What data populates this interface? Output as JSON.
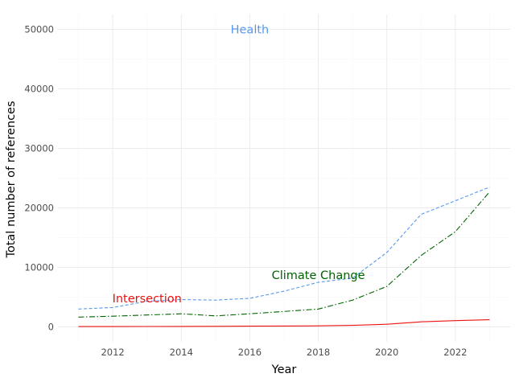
{
  "chart_data": {
    "type": "line",
    "title": "",
    "xlabel": "Year",
    "ylabel": "Total number of references",
    "xlim": [
      2010.4,
      2023.6
    ],
    "ylim": [
      -2500,
      52500
    ],
    "x_ticks": [
      2012,
      2014,
      2016,
      2018,
      2020,
      2022
    ],
    "y_ticks": [
      0,
      10000,
      20000,
      30000,
      40000,
      50000
    ],
    "grid": true,
    "legend": "none",
    "x": [
      2011,
      2012,
      2013,
      2014,
      2015,
      2016,
      2017,
      2018,
      2019,
      2020,
      2021,
      2022,
      2023
    ],
    "series": [
      {
        "name": "Health",
        "color": "#5599ee",
        "dash": "dashed",
        "values": [
          3000,
          3250,
          4300,
          4600,
          4500,
          4800,
          6000,
          7500,
          8200,
          12500,
          18900,
          21200,
          23500
        ],
        "label_at": [
          2016,
          50000
        ]
      },
      {
        "name": "Climate Change",
        "color": "#006400",
        "dash": "dashdot",
        "values": [
          1650,
          1800,
          2000,
          2200,
          1850,
          2200,
          2600,
          3000,
          4500,
          6800,
          12000,
          16000,
          22700
        ],
        "label_at": [
          2018,
          8700
        ]
      },
      {
        "name": "Intersection",
        "color": "#ee1111",
        "dash": "solid",
        "values": [
          50,
          60,
          70,
          80,
          90,
          120,
          150,
          180,
          250,
          450,
          850,
          1050,
          1200
        ],
        "label_at": [
          2013,
          4800
        ]
      }
    ]
  }
}
